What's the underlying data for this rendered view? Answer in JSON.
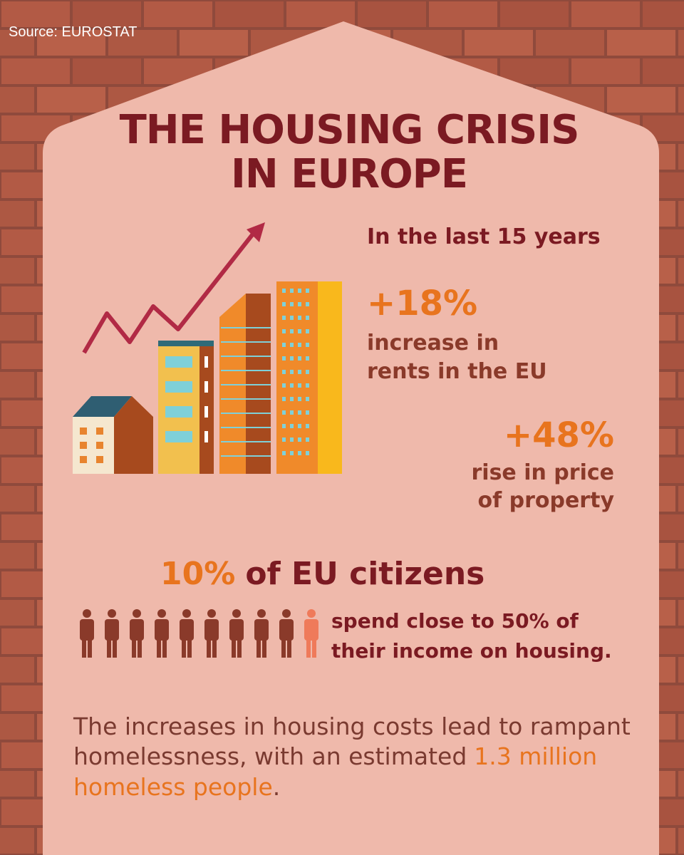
{
  "source": "Source: EUROSTAT",
  "title": {
    "lines": [
      "THE HOUSING CRISIS",
      "IN EUROPE"
    ]
  },
  "period": "In the last 15 years",
  "stats": [
    {
      "value": "+18%",
      "lines": [
        "increase in",
        "rents in the EU"
      ]
    },
    {
      "value": "+48%",
      "lines": [
        "rise in price",
        "of property"
      ]
    }
  ],
  "citizens": {
    "highlight": "10%",
    "rest": "of EU citizens",
    "lines": [
      "spend close to 50% of",
      "their income on housing."
    ]
  },
  "footer": {
    "lines": [
      "The increases in housing costs lead to rampant",
      "homelessness, with an estimated"
    ],
    "highlight": [
      "1.3 million",
      "homeless people"
    ],
    "end": "."
  }
}
